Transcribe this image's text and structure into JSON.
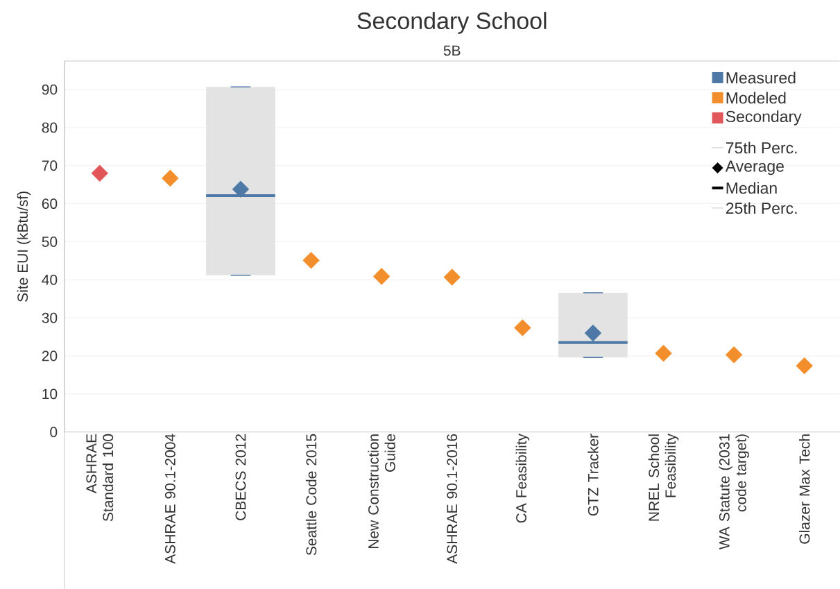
{
  "chart_data": {
    "type": "box",
    "title": "Secondary School",
    "subtitle": "5B",
    "ylabel": "Site EUI (kBtu/sf)",
    "categories": [
      "ASHRAE Standard 100",
      "ASHRAE 90.1-2004",
      "CBECS 2012",
      "Seattle Code 2015",
      "New Construction Guide",
      "ASHRAE 90.1-2016",
      "CA Feasibility",
      "GTZ Tracker",
      "NREL School Feasibility",
      "WA Statute (2031 code target)",
      "Glazer Max Tech"
    ],
    "boxes": [
      null,
      null,
      {
        "low": 41.2,
        "q1": 41.2,
        "median": 62.1,
        "q3": 90.7,
        "high": 90.7
      },
      null,
      null,
      null,
      null,
      {
        "low": 19.6,
        "q1": 19.6,
        "median": 23.5,
        "q3": 36.6,
        "high": 36.6
      },
      null,
      null,
      null
    ],
    "series": [
      {
        "name": "Measured",
        "color": "#4e79a7",
        "type": "scatter",
        "values": [
          null,
          null,
          63.8,
          null,
          null,
          null,
          null,
          26.0,
          null,
          null,
          null
        ]
      },
      {
        "name": "Modeled",
        "color": "#f28e2b",
        "type": "scatter",
        "values": [
          null,
          66.7,
          null,
          45.1,
          40.9,
          40.7,
          27.4,
          null,
          20.7,
          20.3,
          17.4
        ]
      },
      {
        "name": "Secondary",
        "color": "#e15759",
        "type": "scatter",
        "values": [
          68.0,
          null,
          null,
          null,
          null,
          null,
          null,
          null,
          null,
          null,
          null
        ]
      }
    ],
    "ylim": [
      0,
      97.5
    ],
    "yticks": [
      0,
      10,
      20,
      30,
      40,
      50,
      60,
      70,
      80,
      90
    ],
    "grid": "y",
    "legend": "top right",
    "marker": "diamond",
    "annotations": [
      "75th Perc.",
      "Average",
      "Median",
      "25th Perc."
    ]
  }
}
